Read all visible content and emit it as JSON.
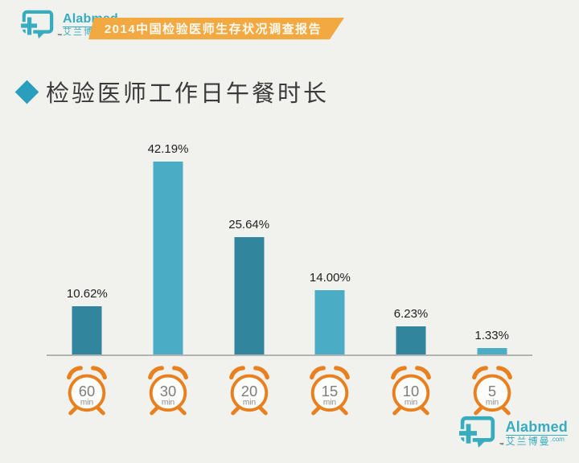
{
  "page": {
    "background": "#f1f1ee"
  },
  "header": {
    "logo": {
      "brand": "Alabmed",
      "brand_cn": "艾兰博曼",
      "tld": ".com",
      "trademark": "™",
      "color": "#36acbe"
    },
    "banner": {
      "text": "2014中国检验医师生存状况调查报告",
      "background": "#f3a942",
      "text_color": "#fdf9f0"
    }
  },
  "section": {
    "title": "检验医师工作日午餐时长",
    "bullet_color": "#2a9ebd"
  },
  "chart_data": {
    "type": "bar",
    "title": "检验医师工作日午餐时长",
    "categories": [
      "60 min",
      "30 min",
      "20 min",
      "15 min",
      "10 min",
      "5 min"
    ],
    "values": [
      10.62,
      42.19,
      25.64,
      14.0,
      6.23,
      1.33
    ],
    "value_labels": [
      "10.62%",
      "42.19%",
      "25.64%",
      "14.00%",
      "6.23%",
      "1.33%"
    ],
    "clock_numbers": [
      "60",
      "30",
      "20",
      "15",
      "10",
      "5"
    ],
    "clock_unit": "min",
    "bar_colors": [
      "#31859c",
      "#4bacc6",
      "#31859c",
      "#4bacc6",
      "#31859c",
      "#4bacc6"
    ],
    "xlabel": "",
    "ylabel": "",
    "ylim": [
      0,
      45
    ],
    "grid": false,
    "legend": false,
    "axis_color": "#b3b3b0",
    "clock_color": "#e8801f",
    "clock_text_color": "#7e7e7e"
  },
  "footer": {
    "logo": {
      "brand": "Alabmed",
      "brand_cn": "艾兰博曼",
      "tld": ".com",
      "trademark": "™",
      "color": "#36acbe"
    }
  }
}
